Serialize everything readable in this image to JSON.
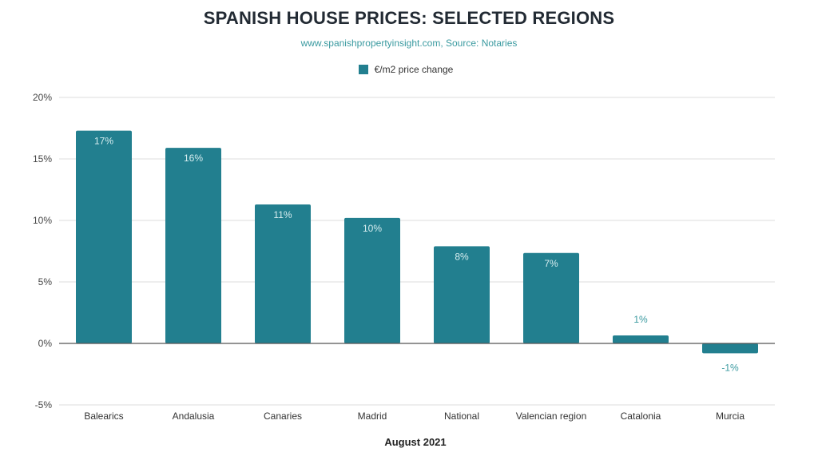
{
  "chart_data": {
    "type": "bar",
    "title": "SPANISH HOUSE PRICES: SELECTED REGIONS",
    "subtitle": "www.spanishpropertyinsight.com, Source: Notaries",
    "xlabel": "August 2021",
    "ylabel": "",
    "legend": {
      "position": "top",
      "entries": [
        "€/m2 price change"
      ]
    },
    "categories": [
      "Balearics",
      "Andalusia",
      "Canaries",
      "Madrid",
      "National",
      "Valencian region",
      "Catalonia",
      "Murcia"
    ],
    "series": [
      {
        "name": "€/m2 price change",
        "color": "#227f8f",
        "values": [
          17.3,
          15.9,
          11.3,
          10.2,
          7.9,
          7.35,
          0.65,
          -0.8
        ],
        "data_labels": [
          "17%",
          "16%",
          "11%",
          "10%",
          "8%",
          "7%",
          "1%",
          "-1%"
        ]
      }
    ],
    "ylim": [
      -5,
      20
    ],
    "yticks": [
      20,
      15,
      10,
      5,
      0,
      -5
    ],
    "ytick_labels": [
      "20%",
      "15%",
      "10%",
      "5%",
      "0%",
      "-5%"
    ],
    "grid": true
  }
}
